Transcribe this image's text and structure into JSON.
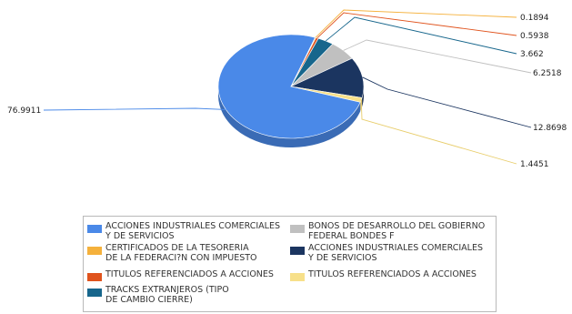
{
  "chart_data": {
    "type": "pie",
    "title": "",
    "slices": [
      {
        "label": "ACCIONES INDUSTRIALES COMERCIALES\nY DE SERVICIOS",
        "value": 76.9911,
        "value_label": "76.9911",
        "color": "#4a89e8"
      },
      {
        "label": "CERTIFICADOS DE LA TESORERIA\nDE LA FEDERACI?N CON IMPUESTO",
        "value": 0.1894,
        "value_label": "0.1894",
        "color": "#f5b13c"
      },
      {
        "label": "TITULOS REFERENCIADOS A ACCIONES",
        "value": 0.5938,
        "value_label": "0.5938",
        "color": "#e0531d"
      },
      {
        "label": "TRACKS EXTRANJEROS (TIPO\nDE CAMBIO CIERRE)",
        "value": 3.662,
        "value_label": "3.662",
        "color": "#17668c"
      },
      {
        "label": "BONOS DE DESARROLLO DEL GOBIERNO\nFEDERAL BONDES F",
        "value": 6.2518,
        "value_label": "6.2518",
        "color": "#c0c0c0"
      },
      {
        "label": "ACCIONES INDUSTRIALES COMERCIALES\nY DE SERVICIOS",
        "value": 12.8698,
        "value_label": "12.8698",
        "color": "#1b3560"
      },
      {
        "label": "TITULOS REFERENCIADOS A ACCIONES",
        "value": 1.4451,
        "value_label": "1.4451",
        "color": "#f7e08a"
      }
    ],
    "legend_placement": "bottom"
  }
}
